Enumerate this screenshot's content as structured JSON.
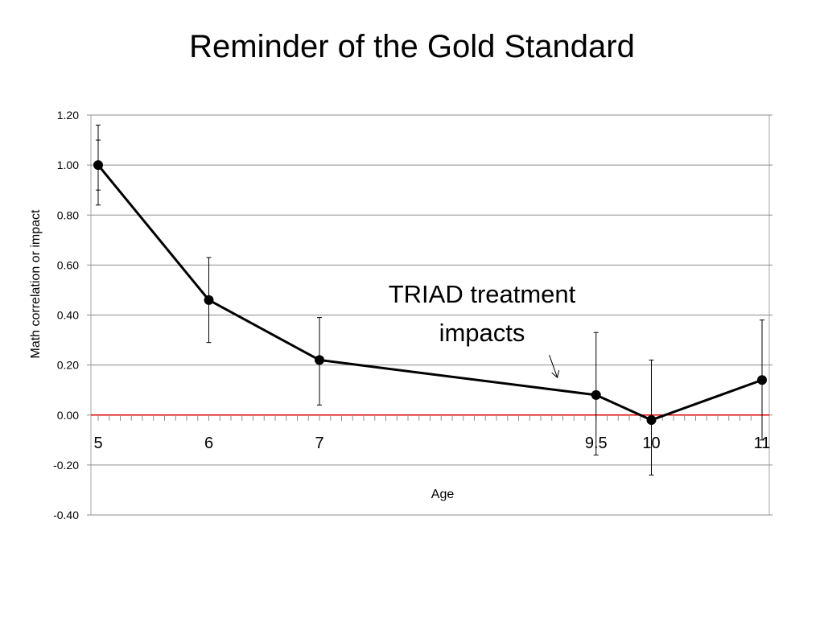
{
  "slide": {
    "title": "Reminder of the Gold Standard"
  },
  "chart_data": {
    "type": "line",
    "title": "Reminder of the Gold Standard",
    "xlabel": "Age",
    "ylabel": "Math correlation or impact",
    "xlim": [
      5,
      11
    ],
    "ylim": [
      -0.4,
      1.2
    ],
    "y_ticks": [
      1.2,
      1.0,
      0.8,
      0.6,
      0.4,
      0.2,
      0.0,
      -0.2,
      -0.4
    ],
    "y_tick_labels": [
      "1.20",
      "1.00",
      "0.80",
      "0.60",
      "0.40",
      "0.20",
      "0.00",
      "-0.20",
      "-0.40"
    ],
    "x_tick_labels": [
      {
        "x": 5,
        "label": "5"
      },
      {
        "x": 6,
        "label": "6"
      },
      {
        "x": 7,
        "label": "7"
      },
      {
        "x": 9.5,
        "label": "9.5"
      },
      {
        "x": 10,
        "label": "10"
      },
      {
        "x": 11,
        "label": "11"
      }
    ],
    "grid": true,
    "reference_line": {
      "y": 0,
      "color": "#e00000"
    },
    "series": [
      {
        "name": "Math correlation or impact",
        "color": "#000000",
        "points": [
          {
            "x": 5,
            "y": 1.0,
            "low": 0.84,
            "high": 1.16
          },
          {
            "x": 6,
            "y": 0.46,
            "low": 0.29,
            "high": 0.63
          },
          {
            "x": 7,
            "y": 0.22,
            "low": 0.04,
            "high": 0.39
          },
          {
            "x": 9.5,
            "y": 0.08,
            "low": -0.16,
            "high": 0.33
          },
          {
            "x": 10,
            "y": -0.02,
            "low": -0.24,
            "high": 0.22
          },
          {
            "x": 11,
            "y": 0.14,
            "low": -0.1,
            "high": 0.38
          }
        ]
      }
    ],
    "extra_error_bar": {
      "x": 5,
      "low": 0.9,
      "high": 1.1
    },
    "annotation": {
      "lines": [
        "TRIAD treatment",
        "impacts"
      ],
      "arrow_target": {
        "x": 9.15,
        "y": 0.15
      }
    }
  }
}
